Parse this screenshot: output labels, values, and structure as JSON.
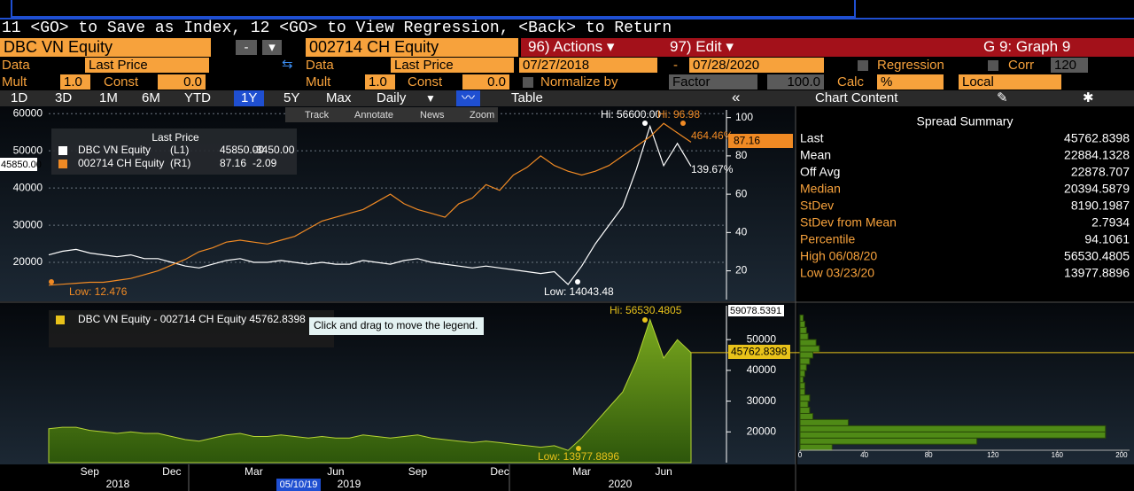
{
  "command_line": "11 <GO> to Save as Index, 12 <GO> to View Regression, <Back> to Return",
  "header": {
    "security1": "DBC VN Equity",
    "minus": "-",
    "security2": "002714 CH Equity",
    "actions": "96) Actions",
    "edit": "97) Edit",
    "graph": "G 9: Graph 9"
  },
  "data_row": {
    "data1": "Data",
    "field1": "Last Price",
    "data2": "Data",
    "field2": "Last Price",
    "start": "07/27/2018",
    "dash": "-",
    "end": "07/28/2020",
    "regression": "Regression",
    "corr": "Corr",
    "corr_value": "120"
  },
  "mult_row": {
    "mult1": "Mult",
    "mult1_value": "1.0",
    "const1": "Const",
    "const1_value": "0.0",
    "mult2": "Mult",
    "mult2_value": "1.0",
    "const2": "Const",
    "const2_value": "0.0",
    "normalize": "Normalize by",
    "factor": "Factor",
    "factor_value": "100.0",
    "calc": "Calc",
    "calc_value": "%",
    "local": "Local"
  },
  "tabs": {
    "items": [
      "1D",
      "3D",
      "1M",
      "6M",
      "YTD",
      "1Y",
      "5Y",
      "Max",
      "Daily"
    ],
    "selected": "1Y",
    "table": "Table",
    "back": "«",
    "chart_content": "Chart Content"
  },
  "chart_tools": [
    "Track",
    "Annotate",
    "News",
    "Zoom"
  ],
  "summary": {
    "title": "Spread Summary",
    "rows": [
      [
        "Last",
        "45762.8398"
      ],
      [
        "Mean",
        "22884.1328"
      ],
      [
        "Off Avg",
        "22878.707"
      ],
      [
        "Median",
        "20394.5879"
      ],
      [
        "StDev",
        "8190.1987"
      ],
      [
        "StDev from Mean",
        "2.7934"
      ],
      [
        "Percentile",
        "94.1061"
      ],
      [
        "High 06/08/20",
        "56530.4805"
      ],
      [
        "Low 03/23/20",
        "13977.8896"
      ]
    ]
  },
  "chart_data": [
    {
      "type": "line",
      "legend_title": "Last Price",
      "series": [
        {
          "name": "DBC VN Equity",
          "axis_tag": "(L1)",
          "last": "45850.00",
          "change": "-3450.00",
          "color": "#ffffff",
          "values": [
            22000,
            23000,
            23500,
            22500,
            22000,
            21500,
            22000,
            21000,
            21000,
            20000,
            19000,
            18500,
            19500,
            20500,
            21000,
            20000,
            20000,
            20500,
            20000,
            19500,
            20000,
            19500,
            19500,
            20500,
            20000,
            19500,
            20500,
            21000,
            20000,
            19500,
            19000,
            18500,
            19000,
            18500,
            18000,
            17500,
            17000,
            17500,
            14043.48,
            19000,
            25000,
            30000,
            35000,
            45000,
            56600,
            46000,
            52000,
            45850
          ]
        },
        {
          "name": "002714 CH Equity",
          "axis_tag": "(R1)",
          "last": "87.16",
          "change": "-2.09",
          "color": "#f08a24",
          "axis": "y2",
          "values": [
            12.476,
            13,
            13.5,
            14,
            14,
            15,
            16,
            18,
            20,
            23,
            26,
            30,
            32,
            35,
            36,
            35,
            34,
            36,
            38,
            42,
            46,
            48,
            50,
            52,
            56,
            60,
            55,
            52,
            50,
            48,
            55,
            58,
            65,
            62,
            70,
            74,
            80,
            75,
            72,
            70,
            72,
            75,
            80,
            85,
            90,
            96.98,
            92,
            87.16
          ]
        }
      ],
      "ylim": [
        10000,
        61000
      ],
      "yticks": [
        20000,
        30000,
        40000,
        50000,
        60000
      ],
      "y2lim": [
        5,
        104
      ],
      "y2ticks": [
        20,
        40,
        60,
        80,
        100
      ],
      "grid": true,
      "annotations": {
        "hi_left": "Hi: 56600.00",
        "low_left": "Low: 14043.48",
        "hi_right": "Hi: 96.98",
        "low_right": "Low: 12.476",
        "pct_right": "464.46%",
        "pct_left": "139.67%",
        "tag_right": "87.16",
        "tag_left": "45850.00"
      }
    },
    {
      "type": "area",
      "categories": [
        null,
        null,
        null,
        "Sep",
        null,
        null,
        null,
        null,
        null,
        "Dec",
        null,
        null,
        null,
        null,
        null,
        "Mar",
        null,
        null,
        null,
        null,
        null,
        "Jun",
        null,
        null,
        null,
        null,
        null,
        "Sep",
        null,
        null,
        null,
        null,
        null,
        "Dec",
        null,
        null,
        null,
        null,
        null,
        "Mar",
        null,
        null,
        null,
        null,
        null,
        "Jun",
        null,
        null
      ],
      "years": [
        "2018",
        "2019",
        "2020"
      ],
      "cursor_date": "05/10/19",
      "series": [
        {
          "name": "DBC VN Equity - 002714 CH Equity 45762.8398",
          "color": "#b5d334",
          "values": [
            21000,
            21500,
            21500,
            20500,
            20000,
            19500,
            20000,
            19500,
            19500,
            18500,
            17500,
            17000,
            18000,
            19000,
            19500,
            18500,
            18500,
            19000,
            18500,
            18000,
            18500,
            18000,
            18000,
            19000,
            18500,
            18000,
            18500,
            19000,
            18000,
            17500,
            17000,
            16500,
            17000,
            16500,
            16000,
            15500,
            15000,
            15500,
            13977.8896,
            18000,
            23000,
            28000,
            33000,
            43000,
            56530.4805,
            44000,
            50000,
            45762.8398
          ]
        }
      ],
      "ylim": [
        10000,
        61000
      ],
      "yticks": [
        20000,
        30000,
        40000,
        50000
      ],
      "annotations": {
        "hi": "Hi: 56530.4805",
        "low": "Low: 13977.8896",
        "tag_top": "59078.5391",
        "tag_last": "45762.8398",
        "tooltip": "Click and drag to move the legend."
      }
    },
    {
      "type": "histogram",
      "orientation": "horizontal",
      "color": "#4f8a16",
      "bins": [
        14000,
        16000,
        18000,
        20000,
        22000,
        24000,
        26000,
        28000,
        30000,
        32000,
        34000,
        36000,
        38000,
        40000,
        42000,
        44000,
        46000,
        48000,
        50000,
        52000,
        54000,
        56000,
        58000
      ],
      "values": [
        20,
        110,
        190,
        190,
        30,
        8,
        6,
        5,
        6,
        3,
        3,
        2,
        3,
        4,
        6,
        8,
        12,
        10,
        5,
        4,
        3,
        2
      ],
      "xlim": [
        0,
        205
      ],
      "xticks": [
        0,
        40,
        80,
        120,
        160,
        200
      ],
      "ylim": [
        10000,
        61000
      ]
    }
  ]
}
